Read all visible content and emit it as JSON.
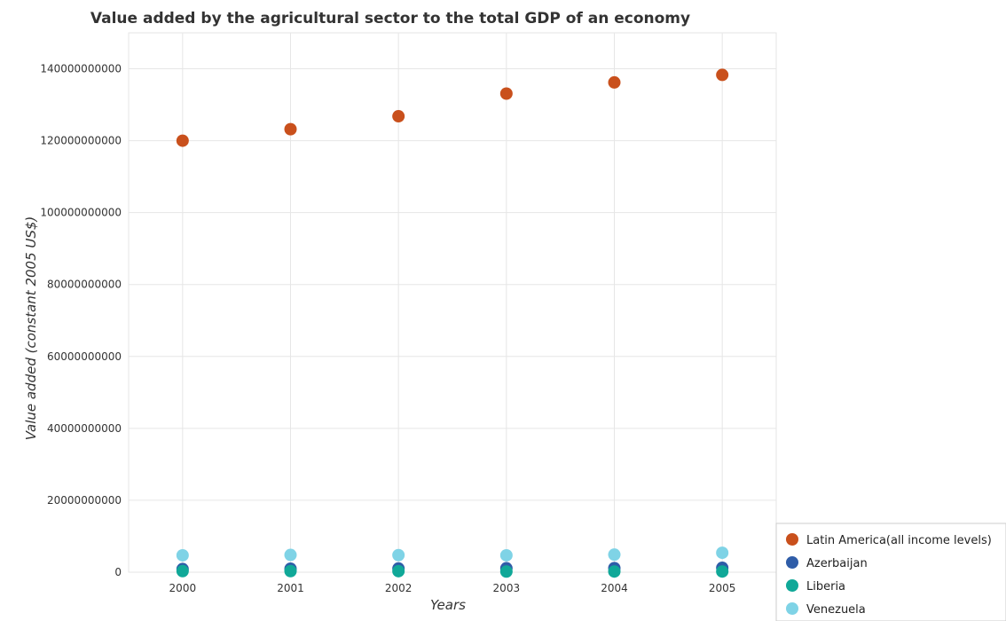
{
  "chart_data": {
    "type": "scatter",
    "title": "Value added by the agricultural sector to the total GDP of an economy",
    "xlabel": "Years",
    "ylabel": "Value added (constant 2005 US$)",
    "categories": [
      "2000",
      "2001",
      "2002",
      "2003",
      "2004",
      "2005"
    ],
    "ylim": [
      0,
      150000000000
    ],
    "yticks": [
      0,
      20000000000,
      40000000000,
      60000000000,
      80000000000,
      100000000000,
      120000000000,
      140000000000
    ],
    "ytick_labels": [
      "0",
      "20000000000",
      "40000000000",
      "60000000000",
      "80000000000",
      "100000000000",
      "120000000000",
      "140000000000"
    ],
    "grid": true,
    "legend_position": "bottom-right",
    "series": [
      {
        "name": "Latin America(all income levels)",
        "color": "#c9501c",
        "values": [
          120000000000,
          123200000000,
          126800000000,
          133100000000,
          136200000000,
          138300000000
        ]
      },
      {
        "name": "Azerbaijan",
        "color": "#2f5da8",
        "values": [
          880000000,
          980000000,
          1040000000,
          1100000000,
          1150000000,
          1230000000
        ]
      },
      {
        "name": "Liberia",
        "color": "#10a898",
        "values": [
          300000000,
          310000000,
          290000000,
          180000000,
          190000000,
          200000000
        ]
      },
      {
        "name": "Venezuela",
        "color": "#7fd3e6",
        "values": [
          4700000000,
          4800000000,
          4750000000,
          4700000000,
          4900000000,
          5400000000
        ]
      }
    ]
  }
}
